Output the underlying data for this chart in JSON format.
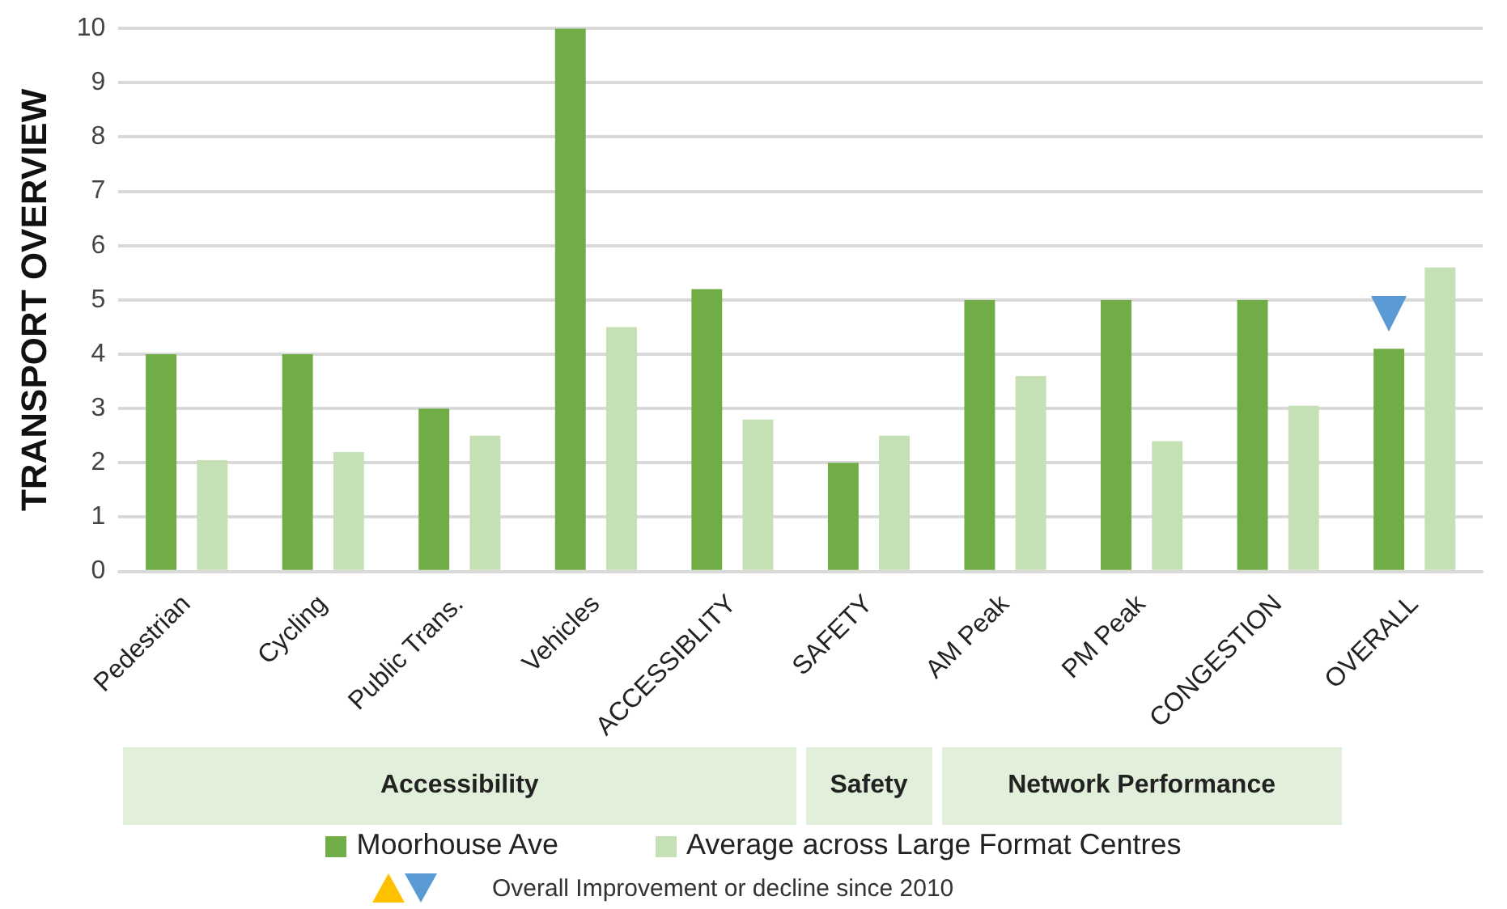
{
  "chart_data": {
    "type": "bar",
    "ylabel": "TRANSPORT OVERVIEW",
    "categories": [
      "Pedestrian",
      "Cycling",
      "Public Trans.",
      "Vehicles",
      "ACCESSIBLITY",
      "SAFETY",
      "AM Peak",
      "PM Peak",
      "CONGESTION",
      "OVERALL"
    ],
    "series": [
      {
        "name": "Moorhouse Ave",
        "color": "#70ad47",
        "values": [
          4,
          4,
          3,
          10,
          5.2,
          2,
          5,
          5,
          5,
          4.1
        ]
      },
      {
        "name": "Average across Large Format Centres",
        "color": "#c5e0b4",
        "values": [
          2.05,
          2.2,
          2.5,
          4.5,
          2.8,
          2.5,
          3.6,
          2.4,
          3.05,
          5.6
        ]
      }
    ],
    "ylim": [
      0,
      10
    ],
    "yticks": [
      0,
      1,
      2,
      3,
      4,
      5,
      6,
      7,
      8,
      9,
      10
    ],
    "grid": "y",
    "legend": "bottom",
    "annotations": [
      "Accessibility",
      "Safety",
      "Network Performance",
      "Overall Improvement or decline since 2010"
    ]
  }
}
